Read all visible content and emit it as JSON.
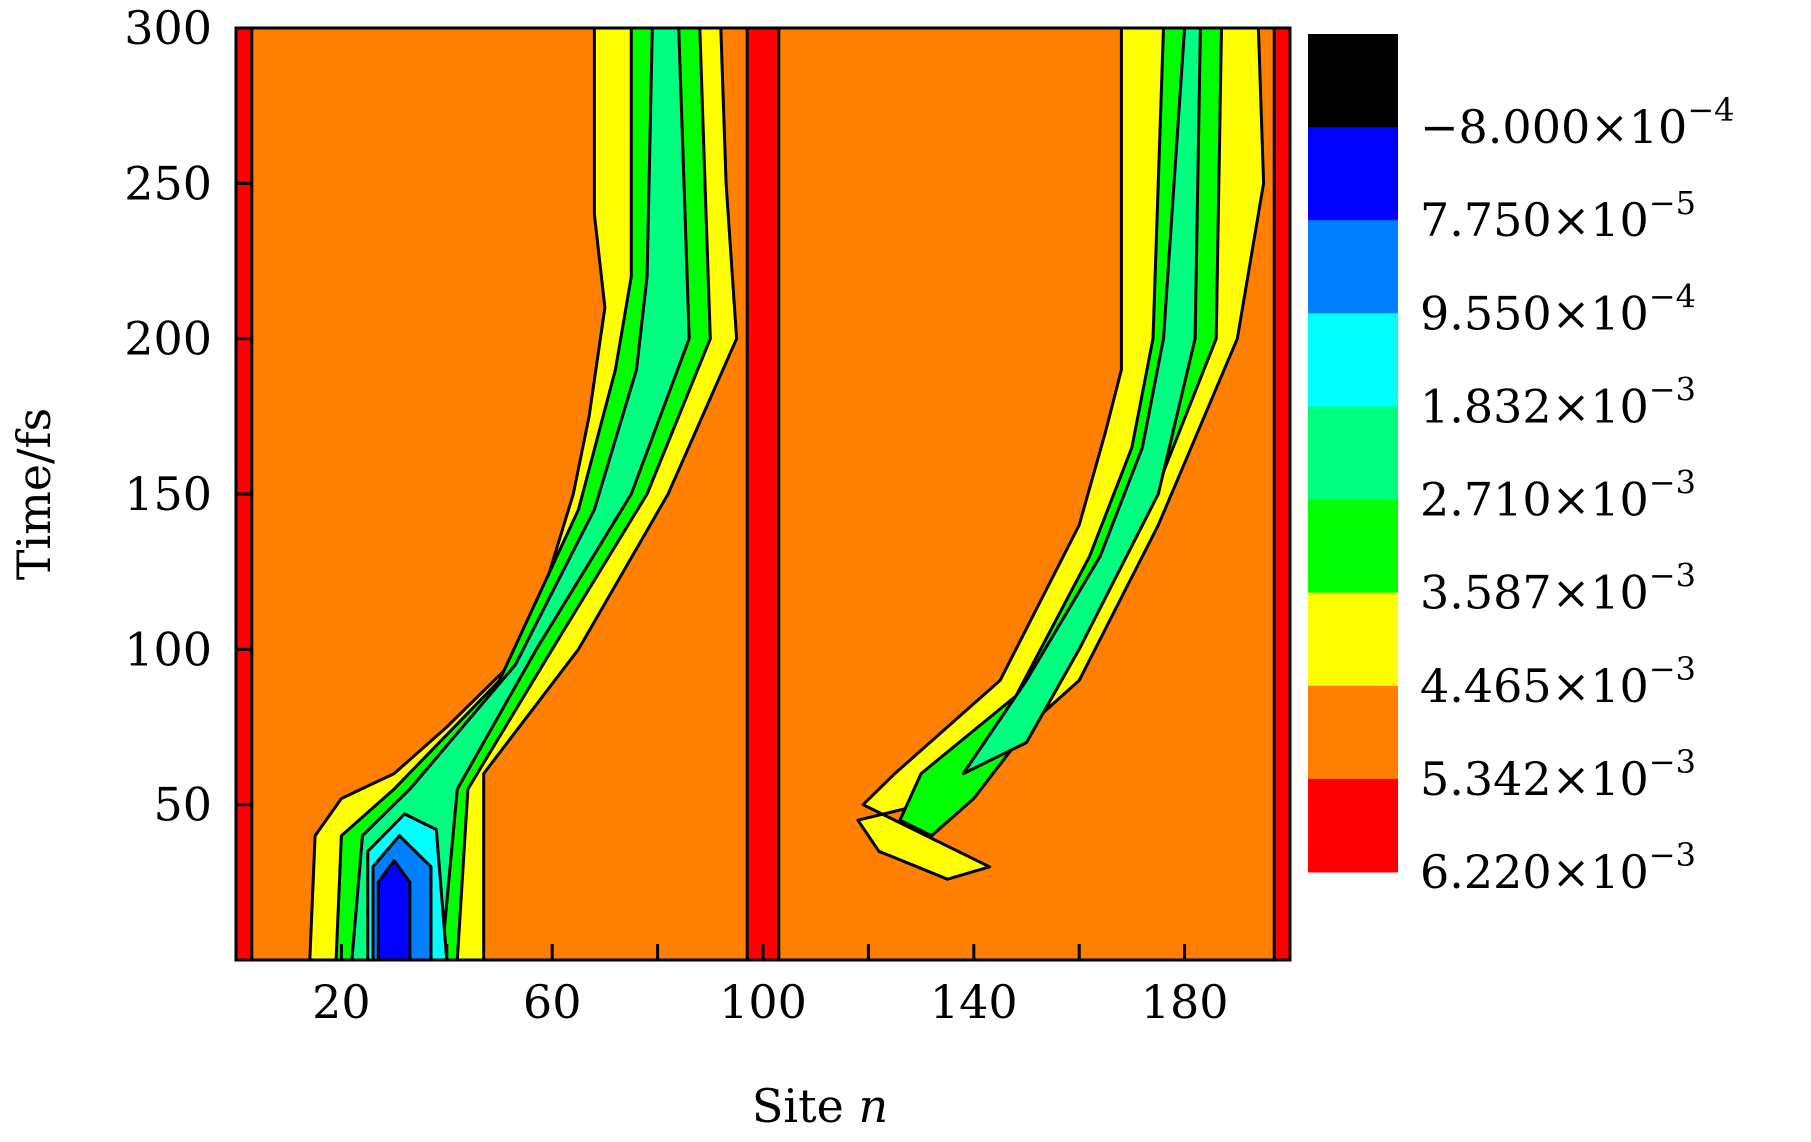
{
  "chart_data": {
    "type": "heatmap",
    "subtype": "filled-contour",
    "title": "",
    "xlabel_text": "Site ",
    "xlabel_var": "n",
    "ylabel": "Time/fs",
    "xlim": [
      0,
      200
    ],
    "ylim": [
      0,
      300
    ],
    "xticks": [
      20,
      60,
      100,
      140,
      180
    ],
    "xminor_ticks": [
      40,
      80,
      120,
      160
    ],
    "yticks": [
      50,
      100,
      150,
      200,
      250,
      300
    ],
    "grid": false,
    "colorbar": {
      "placement": "right",
      "bands": [
        {
          "color": "#000000",
          "label": "−8.000",
          "exp": "−4"
        },
        {
          "color": "#0000ff",
          "label": "7.750",
          "exp": "−5"
        },
        {
          "color": "#0080ff",
          "label": "9.550",
          "exp": "−4"
        },
        {
          "color": "#00ffff",
          "label": "1.832",
          "exp": "−3"
        },
        {
          "color": "#00ff80",
          "label": "2.710",
          "exp": "−3"
        },
        {
          "color": "#00ff00",
          "label": "3.587",
          "exp": "−3"
        },
        {
          "color": "#ffff00",
          "label": "4.465",
          "exp": "−3"
        },
        {
          "color": "#ff8000",
          "label": "5.342",
          "exp": "−3"
        },
        {
          "color": "#ff0000",
          "label": "6.220",
          "exp": "−3"
        }
      ],
      "times_sign": "×10"
    },
    "background_level_color": "#ff8000",
    "boundary_strips": [
      {
        "x": [
          0,
          3
        ],
        "color": "#ff0000"
      },
      {
        "x": [
          97,
          103
        ],
        "color": "#ff0000"
      },
      {
        "x": [
          197,
          200
        ],
        "color": "#ff0000"
      }
    ],
    "regions": [
      {
        "name": "left-packet",
        "levels": [
          {
            "color": "#ffff00",
            "left": [
              [
                14,
                0
              ],
              [
                15,
                40
              ],
              [
                20,
                52
              ],
              [
                30,
                60
              ],
              [
                40,
                75
              ],
              [
                55,
                100
              ],
              [
                64,
                150
              ],
              [
                67,
                175
              ],
              [
                70,
                210
              ],
              [
                68,
                240
              ],
              [
                68,
                300
              ]
            ],
            "right": [
              [
                47,
                0
              ],
              [
                47,
                60
              ],
              [
                65,
                100
              ],
              [
                82,
                150
              ],
              [
                95,
                200
              ],
              [
                93,
                250
              ],
              [
                92,
                300
              ]
            ]
          },
          {
            "color": "#00ff00",
            "left": [
              [
                19,
                0
              ],
              [
                20,
                40
              ],
              [
                30,
                55
              ],
              [
                50,
                90
              ],
              [
                65,
                145
              ],
              [
                72,
                190
              ],
              [
                75,
                220
              ],
              [
                75,
                300
              ]
            ],
            "right": [
              [
                42,
                0
              ],
              [
                44,
                55
              ],
              [
                60,
                100
              ],
              [
                78,
                150
              ],
              [
                90,
                200
              ],
              [
                89,
                250
              ],
              [
                88,
                300
              ]
            ]
          },
          {
            "color": "#00ff80",
            "left": [
              [
                22,
                0
              ],
              [
                24,
                40
              ],
              [
                33,
                55
              ],
              [
                53,
                95
              ],
              [
                68,
                145
              ],
              [
                76,
                190
              ],
              [
                78,
                220
              ],
              [
                79,
                300
              ]
            ],
            "right": [
              [
                39,
                0
              ],
              [
                42,
                55
              ],
              [
                57,
                100
              ],
              [
                75,
                150
              ],
              [
                86,
                200
              ],
              [
                85,
                250
              ],
              [
                84,
                300
              ]
            ]
          },
          {
            "color": "#00ffff",
            "left": [
              [
                25,
                0
              ],
              [
                25,
                35
              ],
              [
                32,
                47
              ],
              [
                38,
                42
              ],
              [
                40,
                0
              ]
            ],
            "right": []
          },
          {
            "color": "#0080ff",
            "left": [
              [
                26,
                0
              ],
              [
                26,
                30
              ],
              [
                31,
                40
              ],
              [
                37,
                30
              ],
              [
                37,
                0
              ]
            ],
            "right": []
          },
          {
            "color": "#0000ff",
            "left": [
              [
                27,
                0
              ],
              [
                27,
                25
              ],
              [
                30,
                32
              ],
              [
                33,
                25
              ],
              [
                33,
                0
              ]
            ],
            "right": []
          }
        ]
      },
      {
        "name": "right-packet",
        "levels": [
          {
            "color": "#ffff00",
            "left": [
              [
                119,
                50
              ],
              [
                125,
                60
              ],
              [
                145,
                90
              ],
              [
                160,
                140
              ],
              [
                165,
                170
              ],
              [
                168,
                190
              ],
              [
                168,
                250
              ],
              [
                168,
                300
              ]
            ],
            "right": [
              [
                143,
                30
              ],
              [
                135,
                26
              ],
              [
                122,
                35
              ],
              [
                118,
                45
              ],
              [
                135,
                52
              ],
              [
                160,
                90
              ],
              [
                175,
                140
              ],
              [
                190,
                200
              ],
              [
                195,
                250
              ],
              [
                194,
                300
              ]
            ]
          },
          {
            "color": "#00ff00",
            "left": [
              [
                126,
                45
              ],
              [
                130,
                60
              ],
              [
                148,
                85
              ],
              [
                162,
                130
              ],
              [
                170,
                165
              ],
              [
                174,
                200
              ],
              [
                176,
                300
              ]
            ],
            "right": [
              [
                132,
                40
              ],
              [
                140,
                52
              ],
              [
                155,
                85
              ],
              [
                172,
                140
              ],
              [
                186,
                200
              ],
              [
                187,
                300
              ]
            ]
          },
          {
            "color": "#00ff80",
            "left": [
              [
                138,
                60
              ],
              [
                150,
                90
              ],
              [
                164,
                130
              ],
              [
                172,
                165
              ],
              [
                176,
                200
              ],
              [
                180,
                300
              ]
            ],
            "right": [
              [
                150,
                70
              ],
              [
                160,
                100
              ],
              [
                175,
                150
              ],
              [
                182,
                200
              ],
              [
                183,
                300
              ]
            ]
          }
        ]
      }
    ]
  }
}
